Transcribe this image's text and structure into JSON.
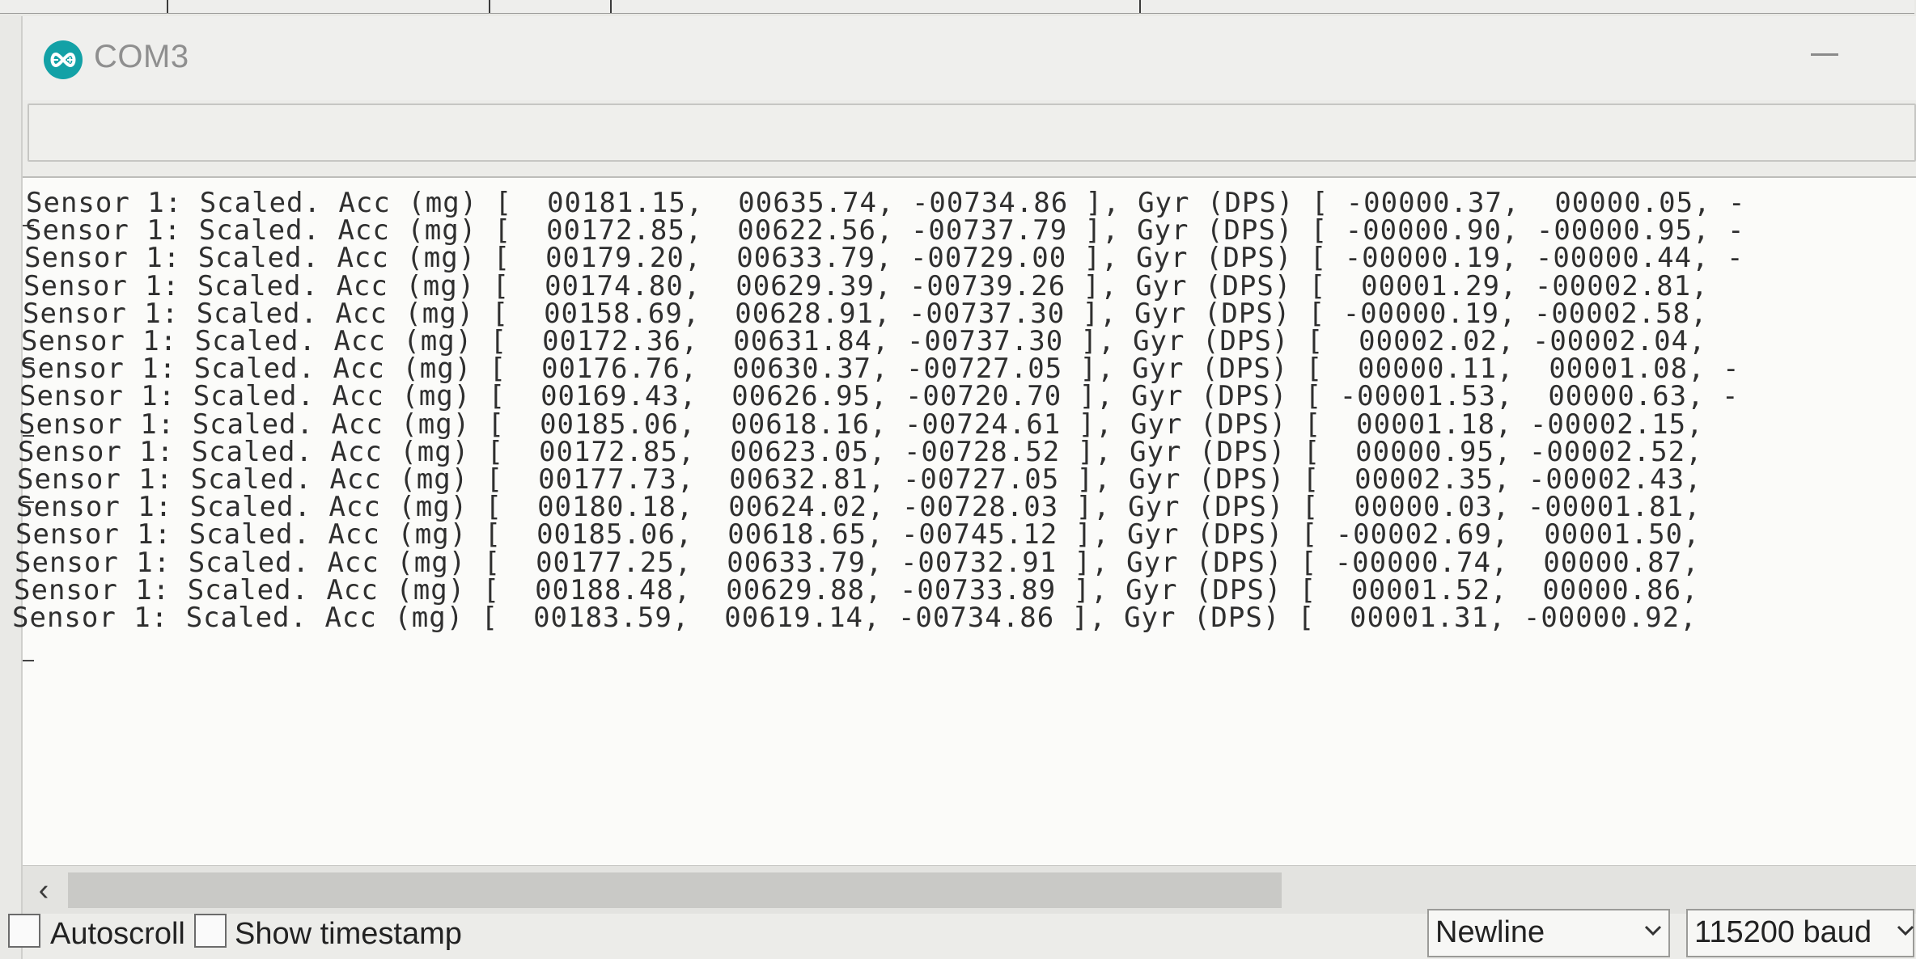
{
  "window": {
    "title": "COM3",
    "icon": "arduino-infinity-icon",
    "accent_color": "#13a1a6"
  },
  "send_input": {
    "value": ""
  },
  "serial_lines": [
    {
      "prefix": "Sensor 1: Scaled. Acc (mg) [",
      "acc": [
        "00181.15,",
        "00635.74,",
        "-00734.86 ],"
      ],
      "gyr_label": "Gyr (DPS) [",
      "gyr": [
        "-00000.37,",
        "00000.05,"
      ],
      "tail": "-"
    },
    {
      "prefix": "Sensor 1: Scaled. Acc (mg) [",
      "acc": [
        "00172.85,",
        "00622.56,",
        "-00737.79 ],"
      ],
      "gyr_label": "Gyr (DPS) [",
      "gyr": [
        "-00000.90,",
        "-00000.95,"
      ],
      "tail": "-"
    },
    {
      "prefix": "Sensor 1: Scaled. Acc (mg) [",
      "acc": [
        "00179.20,",
        "00633.79,",
        "-00729.00 ],"
      ],
      "gyr_label": "Gyr (DPS) [",
      "gyr": [
        "-00000.19,",
        "-00000.44,"
      ],
      "tail": "-"
    },
    {
      "prefix": "Sensor 1: Scaled. Acc (mg) [",
      "acc": [
        "00174.80,",
        "00629.39,",
        "-00739.26 ],"
      ],
      "gyr_label": "Gyr (DPS) [",
      "gyr": [
        "00001.29,",
        "-00002.81,"
      ],
      "tail": ""
    },
    {
      "prefix": "Sensor 1: Scaled. Acc (mg) [",
      "acc": [
        "00158.69,",
        "00628.91,",
        "-00737.30 ],"
      ],
      "gyr_label": "Gyr (DPS) [",
      "gyr": [
        "-00000.19,",
        "-00002.58,"
      ],
      "tail": ""
    },
    {
      "prefix": "Sensor 1: Scaled. Acc (mg) [",
      "acc": [
        "00172.36,",
        "00631.84,",
        "-00737.30 ],"
      ],
      "gyr_label": "Gyr (DPS) [",
      "gyr": [
        "00002.02,",
        "-00002.04,"
      ],
      "tail": ""
    },
    {
      "prefix": "Sensor 1: Scaled. Acc (mg) [",
      "acc": [
        "00176.76,",
        "00630.37,",
        "-00727.05 ],"
      ],
      "gyr_label": "Gyr (DPS) [",
      "gyr": [
        "00000.11,",
        "00001.08,"
      ],
      "tail": "-"
    },
    {
      "prefix": "Sensor 1: Scaled. Acc (mg) [",
      "acc": [
        "00169.43,",
        "00626.95,",
        "-00720.70 ],"
      ],
      "gyr_label": "Gyr (DPS) [",
      "gyr": [
        "-00001.53,",
        "00000.63,"
      ],
      "tail": "-"
    },
    {
      "prefix": "Sensor 1: Scaled. Acc (mg) [",
      "acc": [
        "00185.06,",
        "00618.16,",
        "-00724.61 ],"
      ],
      "gyr_label": "Gyr (DPS) [",
      "gyr": [
        "00001.18,",
        "-00002.15,"
      ],
      "tail": ""
    },
    {
      "prefix": "Sensor 1: Scaled. Acc (mg) [",
      "acc": [
        "00172.85,",
        "00623.05,",
        "-00728.52 ],"
      ],
      "gyr_label": "Gyr (DPS) [",
      "gyr": [
        "00000.95,",
        "-00002.52,"
      ],
      "tail": ""
    },
    {
      "prefix": "Sensor 1: Scaled. Acc (mg) [",
      "acc": [
        "00177.73,",
        "00632.81,",
        "-00727.05 ],"
      ],
      "gyr_label": "Gyr (DPS) [",
      "gyr": [
        "00002.35,",
        "-00002.43,"
      ],
      "tail": ""
    },
    {
      "prefix": "Sensor 1: Scaled. Acc (mg) [",
      "acc": [
        "00180.18,",
        "00624.02,",
        "-00728.03 ],"
      ],
      "gyr_label": "Gyr (DPS) [",
      "gyr": [
        "00000.03,",
        "-00001.81,"
      ],
      "tail": ""
    },
    {
      "prefix": "Sensor 1: Scaled. Acc (mg) [",
      "acc": [
        "00185.06,",
        "00618.65,",
        "-00745.12 ],"
      ],
      "gyr_label": "Gyr (DPS) [",
      "gyr": [
        "-00002.69,",
        "00001.50,"
      ],
      "tail": ""
    },
    {
      "prefix": "Sensor 1: Scaled. Acc (mg) [",
      "acc": [
        "00177.25,",
        "00633.79,",
        "-00732.91 ],"
      ],
      "gyr_label": "Gyr (DPS) [",
      "gyr": [
        "-00000.74,",
        "00000.87,"
      ],
      "tail": ""
    },
    {
      "prefix": "Sensor 1: Scaled. Acc (mg) [",
      "acc": [
        "00188.48,",
        "00629.88,",
        "-00733.89 ],"
      ],
      "gyr_label": "Gyr (DPS) [",
      "gyr": [
        "00001.52,",
        "00000.86,"
      ],
      "tail": ""
    },
    {
      "prefix": "Sensor 1: Scaled. Acc (mg) [",
      "acc": [
        "00183.59,",
        "00619.14,",
        "-00734.86 ],"
      ],
      "gyr_label": "Gyr (DPS) [",
      "gyr": [
        "00001.31,",
        "-00000.92,"
      ],
      "tail": ""
    }
  ],
  "footer": {
    "autoscroll_label": "Autoscroll",
    "autoscroll_checked": false,
    "timestamp_label": "Show timestamp",
    "timestamp_checked": false,
    "line_ending": "Newline",
    "baud_rate": "115200 baud"
  }
}
